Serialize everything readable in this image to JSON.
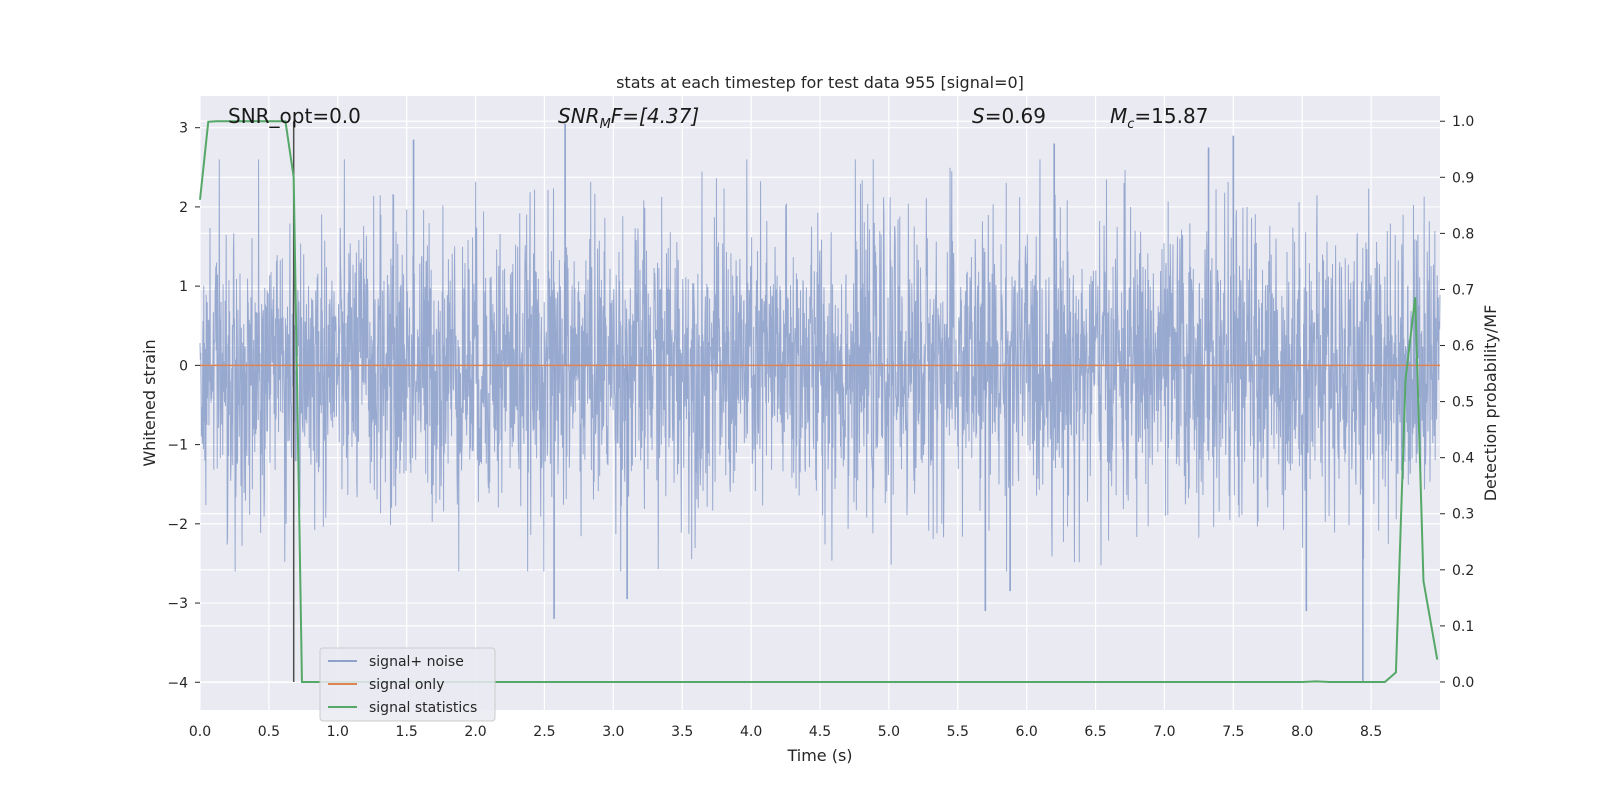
{
  "chart_data": {
    "type": "line",
    "title": "stats at each timestep for test data 955 [signal=0]",
    "xlabel": "Time (s)",
    "ylabel": "Whitened strain",
    "y2label": "Detection probability/MF",
    "xlim": [
      0.0,
      9.0
    ],
    "ylim": [
      -4.35,
      3.4
    ],
    "y2lim": [
      -0.05,
      1.045
    ],
    "grid": true,
    "legend_position": "lower-left",
    "x_ticks": [
      "0.0",
      "0.5",
      "1.0",
      "1.5",
      "2.0",
      "2.5",
      "3.0",
      "3.5",
      "4.0",
      "4.5",
      "5.0",
      "5.5",
      "6.0",
      "6.5",
      "7.0",
      "7.5",
      "8.0",
      "8.5"
    ],
    "y_ticks": [
      "3",
      "2",
      "1",
      "0",
      "−1",
      "−2",
      "−3",
      "−4"
    ],
    "y2_ticks": [
      "1.0",
      "0.9",
      "0.8",
      "0.7",
      "0.6",
      "0.5",
      "0.4",
      "0.3",
      "0.2",
      "0.1",
      "0.0"
    ],
    "annotations": {
      "snr_opt": "SNR_opt=0.0",
      "snr_mf_sym": "SNR",
      "snr_mf_sub": "M",
      "snr_mf_rest": "F=[4.37]",
      "s_sym": "S",
      "s_val": "=0.69",
      "mc_sym": "M",
      "mc_sub": "c",
      "mc_val": "=15.87"
    },
    "marker_line_x": 0.68,
    "series": [
      {
        "name": "signal+ noise",
        "color": "#8fa2cc",
        "description": "whitened noisy strain, roughly Gaussian with std ~0.9 sampled densely over 0-9 s",
        "std": 0.9,
        "spikes": [
          [
            2.65,
            3.05
          ],
          [
            2.57,
            -3.2
          ],
          [
            3.1,
            -2.95
          ],
          [
            5.7,
            -3.1
          ],
          [
            5.88,
            -2.85
          ],
          [
            6.2,
            2.8
          ],
          [
            7.32,
            2.75
          ],
          [
            8.44,
            -4.0
          ],
          [
            8.03,
            -3.1
          ],
          [
            7.5,
            2.9
          ],
          [
            1.55,
            2.85
          ]
        ]
      },
      {
        "name": "signal only",
        "color": "#dd8452",
        "x": [
          0.0,
          9.0
        ],
        "y": [
          0.0,
          0.0
        ]
      },
      {
        "name": "signal statistics",
        "color": "#55a868",
        "x": [
          0.0,
          0.06,
          0.12,
          0.2,
          0.3,
          0.4,
          0.5,
          0.62,
          0.68,
          0.74,
          0.8,
          1.0,
          2.0,
          3.0,
          4.0,
          5.0,
          6.0,
          7.0,
          8.0,
          8.1,
          8.2,
          8.5,
          8.6,
          8.68,
          8.75,
          8.82,
          8.88,
          8.98
        ],
        "y": [
          0.86,
          0.999,
          1.0,
          1.0,
          1.0,
          1.0,
          1.0,
          1.0,
          0.9,
          0.0,
          0.0,
          0.0,
          0.0,
          0.0,
          0.0,
          0.0,
          0.0,
          0.0,
          0.0,
          0.001,
          0.0,
          0.0,
          0.0,
          0.017,
          0.54,
          0.686,
          0.18,
          0.04
        ]
      }
    ]
  }
}
